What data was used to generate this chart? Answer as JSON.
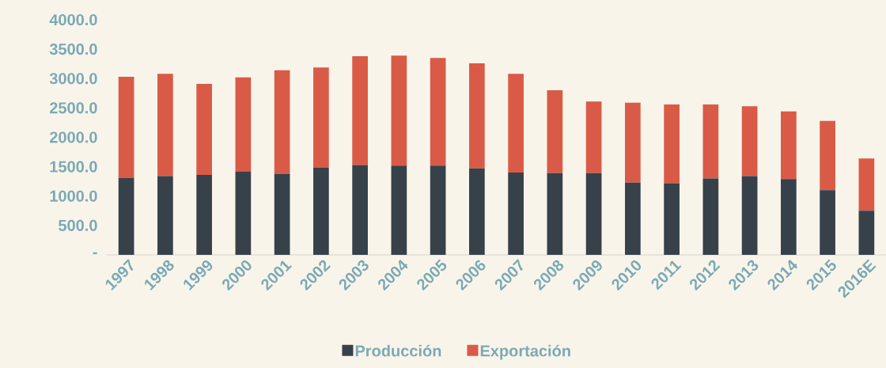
{
  "chart_data": {
    "type": "bar",
    "stacked": true,
    "categories": [
      "1997",
      "1998",
      "1999",
      "2000",
      "2001",
      "2002",
      "2003",
      "2004",
      "2005",
      "2006",
      "2007",
      "2008",
      "2009",
      "2010",
      "2011",
      "2012",
      "2013",
      "2014",
      "2015",
      "2016E"
    ],
    "series": [
      {
        "name": "Producción",
        "color": "#36414a",
        "values": [
          1310,
          1340,
          1360,
          1420,
          1380,
          1480,
          1530,
          1520,
          1520,
          1470,
          1400,
          1390,
          1390,
          1230,
          1220,
          1300,
          1340,
          1290,
          1100,
          750
        ]
      },
      {
        "name": "Exportación",
        "color": "#d95b47",
        "values": [
          1720,
          1740,
          1550,
          1600,
          1760,
          1710,
          1850,
          1870,
          1830,
          1790,
          1680,
          1410,
          1220,
          1360,
          1340,
          1260,
          1190,
          1150,
          1180,
          890
        ]
      }
    ],
    "ylim": [
      0,
      4000
    ],
    "yticks": [
      {
        "value": 0,
        "label": "-"
      },
      {
        "value": 500,
        "label": "500.0"
      },
      {
        "value": 1000,
        "label": "1000.0"
      },
      {
        "value": 1500,
        "label": "1500.0"
      },
      {
        "value": 2000,
        "label": "2000.0"
      },
      {
        "value": 2500,
        "label": "2500.0"
      },
      {
        "value": 3000,
        "label": "3000.0"
      },
      {
        "value": 3500,
        "label": "3500.0"
      },
      {
        "value": 4000,
        "label": "4000.0"
      }
    ],
    "grid": false,
    "legend": "bottom"
  }
}
